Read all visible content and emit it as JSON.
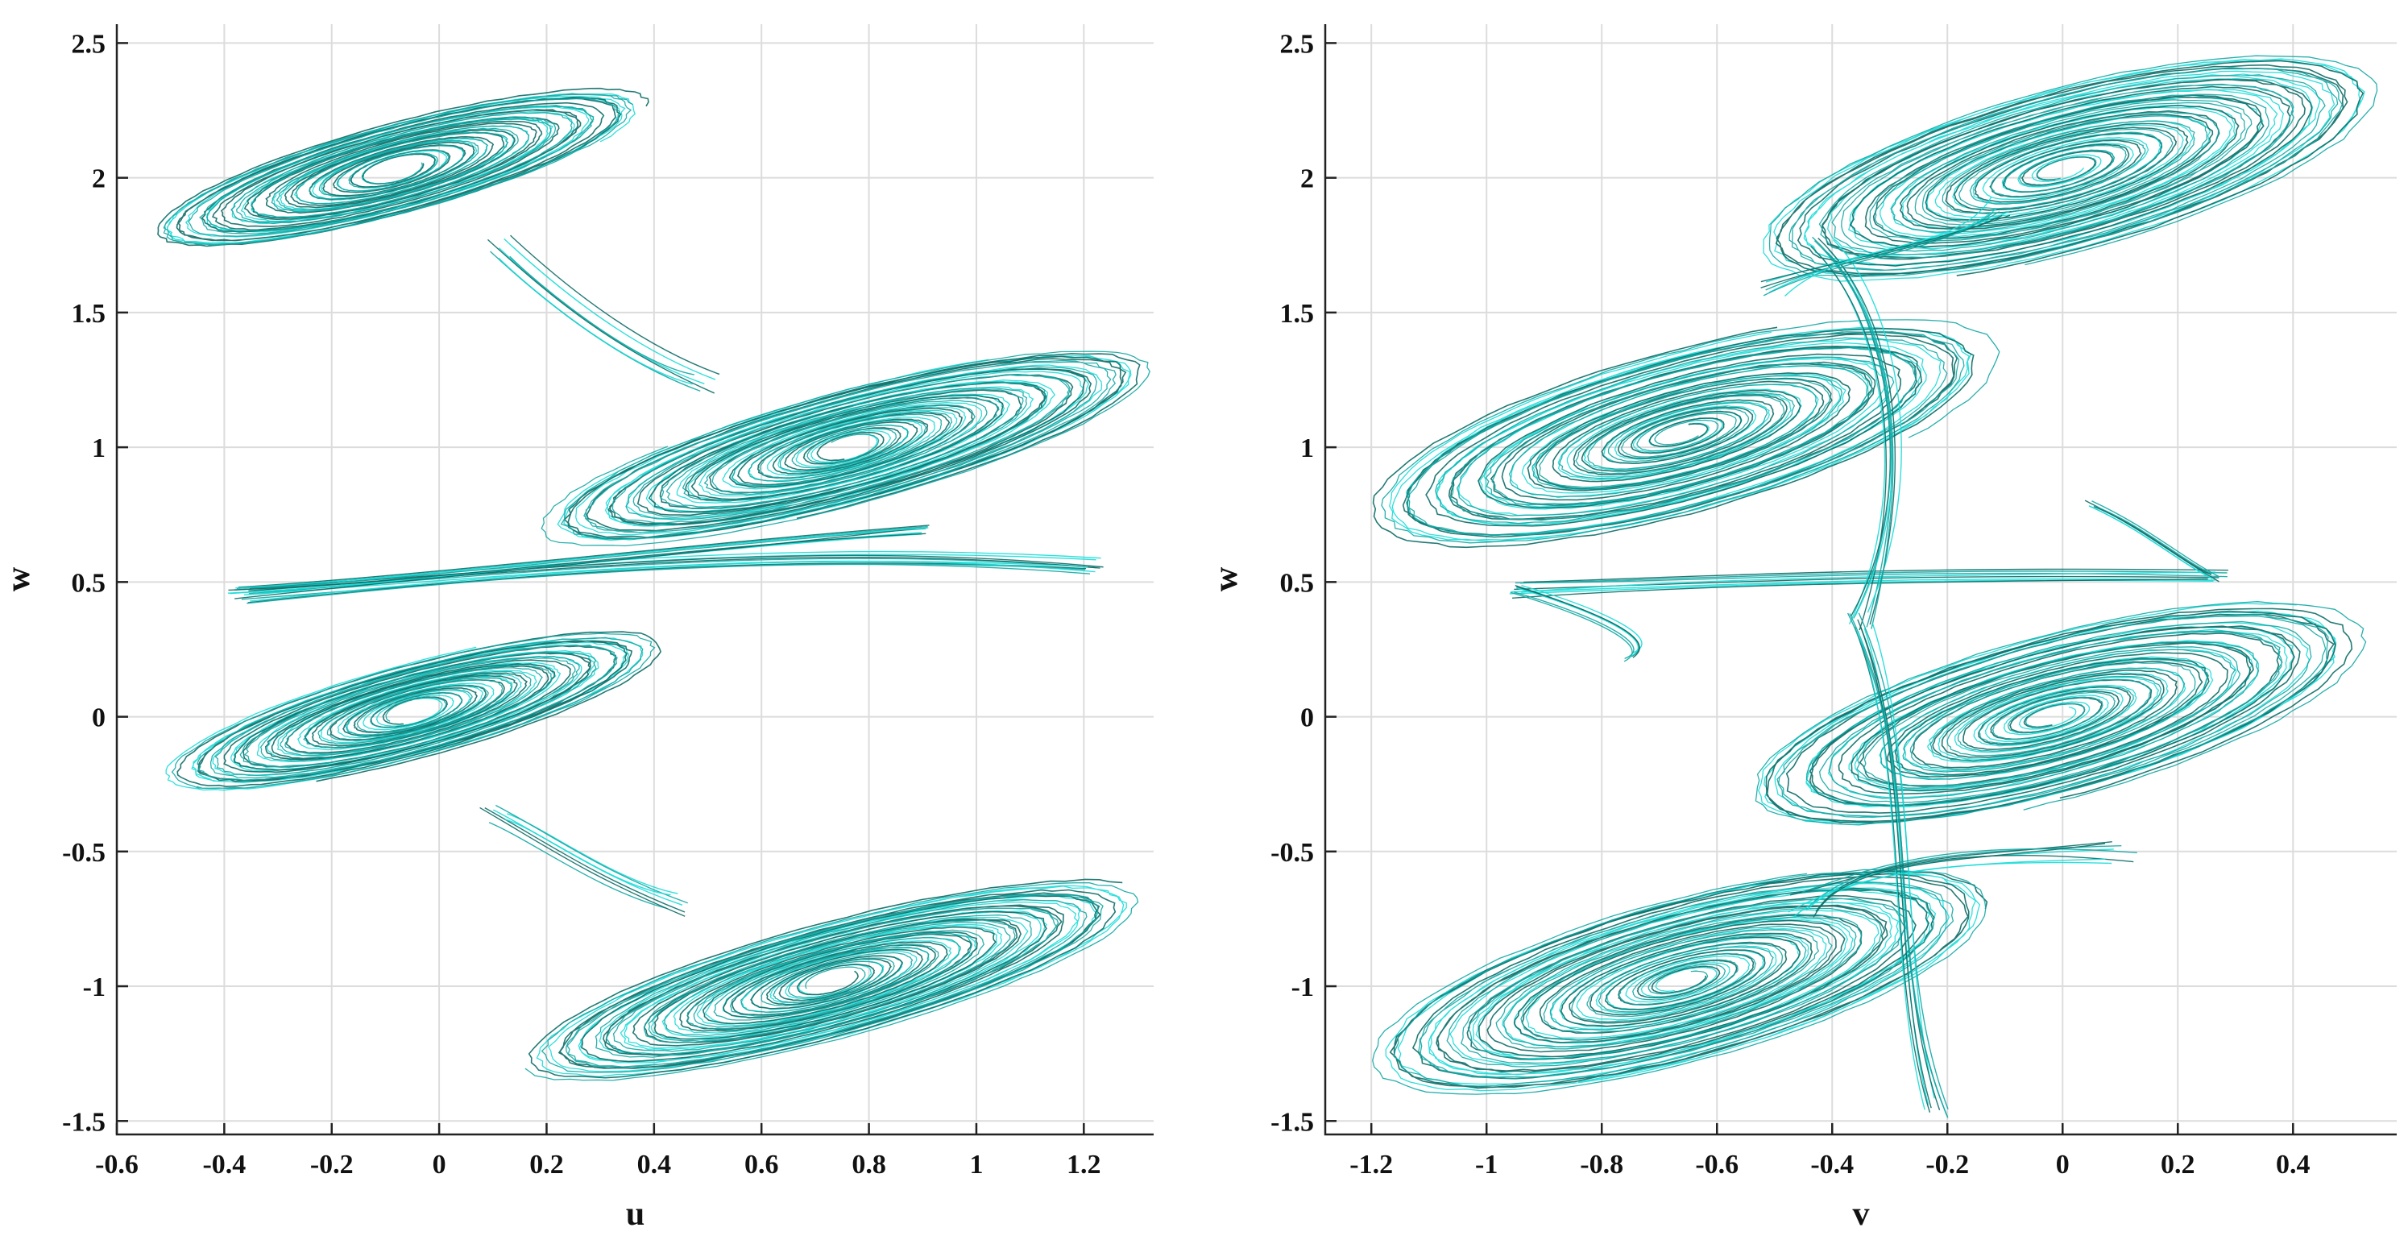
{
  "colors": {
    "trajectory_light": "#17dcd8",
    "trajectory_dark": "#0b6b66",
    "trajectory_mid": "#12a7a4"
  },
  "chart_data": [
    {
      "type": "line",
      "title": "",
      "xlabel": "u",
      "ylabel": "w",
      "xlim": [
        -0.6,
        1.33
      ],
      "ylim": [
        -1.55,
        2.57
      ],
      "xticks": [
        -0.6,
        -0.4,
        -0.2,
        0,
        0.2,
        0.4,
        0.6,
        0.8,
        1,
        1.2
      ],
      "xtick_labels": [
        "-0.6",
        "-0.4",
        "-0.2",
        "0",
        "0.2",
        "0.4",
        "0.6",
        "0.8",
        "1",
        "1.2"
      ],
      "yticks": [
        -1.5,
        -1,
        -0.5,
        0,
        0.5,
        1,
        1.5,
        2,
        2.5
      ],
      "ytick_labels": [
        "-1.5",
        "-1",
        "-0.5",
        "0",
        "0.5",
        "1",
        "1.5",
        "2",
        "2.5"
      ],
      "grid": true,
      "scrolls": [
        {
          "cx": -0.08,
          "cy": 2.03,
          "rmin": 0.05,
          "rmax": 0.47,
          "amin": 0.04,
          "amax": 0.17,
          "angle_deg": -15,
          "turns": 16
        },
        {
          "cx": 0.76,
          "cy": 1.0,
          "rmin": 0.05,
          "rmax": 0.58,
          "amin": 0.04,
          "amax": 0.21,
          "angle_deg": -15,
          "turns": 18
        },
        {
          "cx": -0.05,
          "cy": 0.02,
          "rmin": 0.05,
          "rmax": 0.47,
          "amin": 0.04,
          "amax": 0.17,
          "angle_deg": -15,
          "turns": 16
        },
        {
          "cx": 0.73,
          "cy": -0.98,
          "rmin": 0.05,
          "rmax": 0.58,
          "amin": 0.04,
          "amax": 0.21,
          "angle_deg": -15,
          "turns": 18
        }
      ],
      "bridges": [
        {
          "points": [
            [
              1.22,
              0.56
            ],
            [
              0.7,
              0.63
            ],
            [
              0.25,
              0.56
            ],
            [
              -0.35,
              0.45
            ]
          ],
          "count": 10,
          "spread": 0.03
        },
        {
          "points": [
            [
              -0.38,
              0.46
            ],
            [
              0.0,
              0.52
            ],
            [
              0.5,
              0.63
            ],
            [
              0.9,
              0.7
            ]
          ],
          "count": 8,
          "spread": 0.025
        },
        {
          "points": [
            [
              0.12,
              1.75
            ],
            [
              0.2,
              1.6
            ],
            [
              0.35,
              1.35
            ],
            [
              0.5,
              1.25
            ]
          ],
          "count": 7,
          "spread": 0.05
        },
        {
          "points": [
            [
              0.1,
              -0.35
            ],
            [
              0.2,
              -0.45
            ],
            [
              0.3,
              -0.6
            ],
            [
              0.45,
              -0.7
            ]
          ],
          "count": 7,
          "spread": 0.05
        }
      ]
    },
    {
      "type": "line",
      "title": "",
      "xlabel": "v",
      "ylabel": "w",
      "xlim": [
        -1.28,
        0.58
      ],
      "ylim": [
        -1.55,
        2.57
      ],
      "xticks": [
        -1.2,
        -1,
        -0.8,
        -0.6,
        -0.4,
        -0.2,
        0,
        0.2,
        0.4
      ],
      "xtick_labels": [
        "-1.2",
        "-1",
        "-0.8",
        "-0.6",
        "-0.4",
        "-0.2",
        "0",
        "0.2",
        "0.4"
      ],
      "yticks": [
        -1.5,
        -1,
        -0.5,
        0,
        0.5,
        1,
        1.5,
        2,
        2.5
      ],
      "ytick_labels": [
        "-1.5",
        "-1",
        "-0.5",
        "0",
        "0.5",
        "1",
        "1.5",
        "2",
        "2.5"
      ],
      "grid": true,
      "scrolls": [
        {
          "cx": 0.0,
          "cy": 2.03,
          "rmin": 0.04,
          "rmax": 0.55,
          "amin": 0.03,
          "amax": 0.3,
          "angle_deg": -15,
          "turns": 18
        },
        {
          "cx": -0.66,
          "cy": 1.05,
          "rmin": 0.04,
          "rmax": 0.55,
          "amin": 0.03,
          "amax": 0.3,
          "angle_deg": -15,
          "turns": 18
        },
        {
          "cx": -0.02,
          "cy": 0.0,
          "rmin": 0.04,
          "rmax": 0.55,
          "amin": 0.03,
          "amax": 0.3,
          "angle_deg": -15,
          "turns": 18
        },
        {
          "cx": -0.66,
          "cy": -0.98,
          "rmin": 0.04,
          "rmax": 0.55,
          "amin": 0.03,
          "amax": 0.3,
          "angle_deg": -15,
          "turns": 18
        }
      ],
      "bridges": [
        {
          "points": [
            [
              -0.95,
              0.47
            ],
            [
              -0.6,
              0.5
            ],
            [
              -0.3,
              0.53
            ],
            [
              0.27,
              0.52
            ]
          ],
          "count": 8,
          "spread": 0.03
        },
        {
          "points": [
            [
              -0.95,
              0.48
            ],
            [
              -0.8,
              0.38
            ],
            [
              -0.7,
              0.28
            ],
            [
              -0.75,
              0.22
            ]
          ],
          "count": 6,
          "spread": 0.02
        },
        {
          "points": [
            [
              0.05,
              0.8
            ],
            [
              0.15,
              0.7
            ],
            [
              0.2,
              0.6
            ],
            [
              0.27,
              0.52
            ]
          ],
          "count": 6,
          "spread": 0.02
        },
        {
          "points": [
            [
              -0.42,
              1.75
            ],
            [
              -0.3,
              1.5
            ],
            [
              -0.25,
              0.9
            ],
            [
              -0.35,
              0.35
            ]
          ],
          "count": 9,
          "spread": 0.04
        },
        {
          "points": [
            [
              -0.35,
              0.35
            ],
            [
              -0.25,
              -0.2
            ],
            [
              -0.3,
              -0.9
            ],
            [
              -0.22,
              -1.45
            ]
          ],
          "count": 9,
          "spread": 0.04
        },
        {
          "points": [
            [
              -0.5,
              1.6
            ],
            [
              -0.35,
              1.75
            ],
            [
              -0.2,
              1.75
            ],
            [
              -0.1,
              1.9
            ]
          ],
          "count": 7,
          "spread": 0.04
        },
        {
          "points": [
            [
              -0.45,
              -0.7
            ],
            [
              -0.35,
              -0.55
            ],
            [
              -0.2,
              -0.5
            ],
            [
              0.1,
              -0.5
            ]
          ],
          "count": 8,
          "spread": 0.05
        }
      ]
    }
  ]
}
